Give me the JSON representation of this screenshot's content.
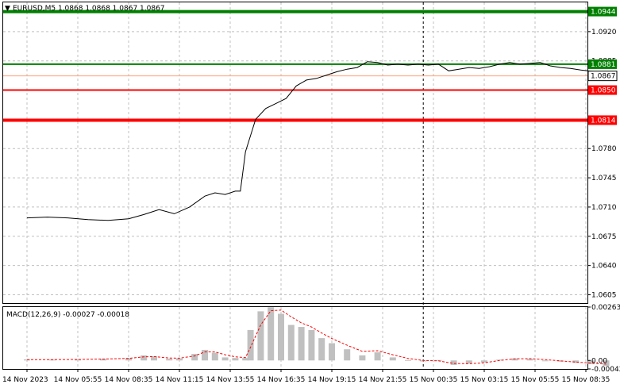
{
  "header": {
    "symbol_line": "EURUSD,M5  1.0868 1.0868 1.0867 1.0867",
    "macd_label": "MACD(12,26,9) -0.00027 -0.00018"
  },
  "colors": {
    "price_line": "#000000",
    "grid": "#c0c0c0",
    "resistance": "#008000",
    "support": "#ff0000",
    "current_price": "#ffa07a",
    "histogram": "#c0c0c0",
    "signal": "#ff0000"
  },
  "chart_data": [
    {
      "type": "line",
      "symbol": "EURUSD",
      "timeframe": "M5",
      "ohlc_readout": {
        "open": 1.0868,
        "high": 1.0868,
        "low": 1.0867,
        "close": 1.0867
      },
      "ylim": [
        1.0595,
        1.0955
      ],
      "y_ticks": [
        "1.0920",
        "1.0885",
        "1.0850",
        "1.0815",
        "1.0780",
        "1.0745",
        "1.0710",
        "1.0675",
        "1.0640",
        "1.0605"
      ],
      "x_ticks": [
        "14 Nov 2023",
        "14 Nov 05:55",
        "14 Nov 08:35",
        "14 Nov 11:15",
        "14 Nov 13:55",
        "14 Nov 16:35",
        "14 Nov 19:15",
        "14 Nov 21:55",
        "15 Nov 00:35",
        "15 Nov 03:15",
        "15 Nov 05:55",
        "15 Nov 08:35"
      ],
      "x_index_range": [
        0,
        11
      ],
      "grid": true,
      "period_separator_index": 7.8,
      "x": [
        0,
        0.4,
        0.8,
        1.2,
        1.6,
        2.0,
        2.3,
        2.6,
        2.9,
        3.2,
        3.5,
        3.7,
        3.9,
        4.1,
        4.2,
        4.3,
        4.5,
        4.7,
        4.9,
        5.1,
        5.3,
        5.5,
        5.7,
        5.9,
        6.1,
        6.3,
        6.5,
        6.7,
        6.9,
        7.1,
        7.3,
        7.5,
        7.7,
        7.9,
        8.1,
        8.3,
        8.5,
        8.7,
        8.9,
        9.1,
        9.3,
        9.5,
        9.7,
        9.9,
        10.1,
        10.3,
        10.5,
        10.7,
        10.9,
        11.2,
        11.4
      ],
      "series": [
        {
          "values": [
            1.0697,
            1.0698,
            1.0697,
            1.0695,
            1.0694,
            1.0696,
            1.0701,
            1.0707,
            1.0702,
            1.071,
            1.0723,
            1.0727,
            1.0725,
            1.0729,
            1.0729,
            1.0776,
            1.0815,
            1.0828,
            1.0834,
            1.084,
            1.0855,
            1.0862,
            1.0864,
            1.0868,
            1.0872,
            1.0875,
            1.0877,
            1.0884,
            1.0883,
            1.088,
            1.0881,
            1.088,
            1.0881,
            1.088,
            1.0881,
            1.0873,
            1.0875,
            1.0877,
            1.0876,
            1.0878,
            1.0881,
            1.0883,
            1.0881,
            1.0882,
            1.0883,
            1.0879,
            1.0877,
            1.0876,
            1.0874,
            1.0872,
            1.0867
          ]
        }
      ],
      "levels": [
        {
          "label": "1.0944",
          "value": 1.0944,
          "color": "#008000",
          "role": "resistance"
        },
        {
          "label": "1.0881",
          "value": 1.0881,
          "color": "#008000",
          "role": "resistance"
        },
        {
          "label": "1.0867",
          "value": 1.0867,
          "color": "#ffa07a",
          "role": "current"
        },
        {
          "label": "1.0850",
          "value": 1.085,
          "color": "#ff0000",
          "role": "support"
        },
        {
          "label": "1.0814",
          "value": 1.0814,
          "color": "#ff0000",
          "role": "support"
        }
      ]
    },
    {
      "type": "bar",
      "title": "MACD(12,26,9)",
      "macd_value": -0.00027,
      "signal_value": -0.00018,
      "ylim": [
        -0.00042,
        0.00263
      ],
      "y_ticks": [
        "0.00263",
        "0.00",
        "-0.00042"
      ],
      "x": [
        0,
        0.5,
        1.0,
        1.5,
        2.0,
        2.3,
        2.5,
        2.8,
        3.0,
        3.3,
        3.5,
        3.7,
        3.9,
        4.1,
        4.3,
        4.4,
        4.6,
        4.8,
        5.0,
        5.2,
        5.4,
        5.6,
        5.8,
        6.0,
        6.3,
        6.6,
        6.9,
        7.2,
        7.5,
        7.8,
        8.1,
        8.4,
        8.7,
        9.0,
        9.3,
        9.6,
        9.9,
        10.2,
        10.5,
        10.8,
        11.1,
        11.4
      ],
      "series": [
        {
          "type": "bar",
          "values": [
            5e-05,
            4e-05,
            6e-05,
            8e-05,
            0.00012,
            0.00025,
            0.0002,
            8e-05,
            0.0001,
            0.00032,
            0.00052,
            0.00038,
            0.00015,
            0.00012,
            0.00012,
            0.0015,
            0.00242,
            0.00262,
            0.0023,
            0.00175,
            0.00165,
            0.0015,
            0.0011,
            0.00085,
            0.00055,
            0.00025,
            0.0004,
            0.00015,
            2e-05,
            -5e-05,
            2e-05,
            -0.00022,
            -0.00015,
            -0.0001,
            4e-05,
            0.0001,
            8e-05,
            0.0,
            -6e-05,
            -0.00012,
            -0.00018,
            -0.00027
          ]
        },
        {
          "type": "line",
          "values": [
            4e-05,
            4e-05,
            5e-05,
            7e-05,
            0.0001,
            0.00018,
            0.00019,
            0.00012,
            0.00011,
            0.00022,
            0.00042,
            0.00042,
            0.00028,
            0.00018,
            0.00014,
            0.00065,
            0.00175,
            0.00245,
            0.00248,
            0.00215,
            0.00185,
            0.00165,
            0.00135,
            0.00108,
            0.00075,
            0.00045,
            0.00048,
            0.00028,
            0.0001,
            0.0,
            -2e-05,
            -0.00015,
            -0.00016,
            -0.00012,
            0.0,
            8e-05,
            9e-05,
            4e-05,
            -2e-05,
            -8e-05,
            -0.00013,
            -0.00018
          ]
        }
      ]
    }
  ]
}
